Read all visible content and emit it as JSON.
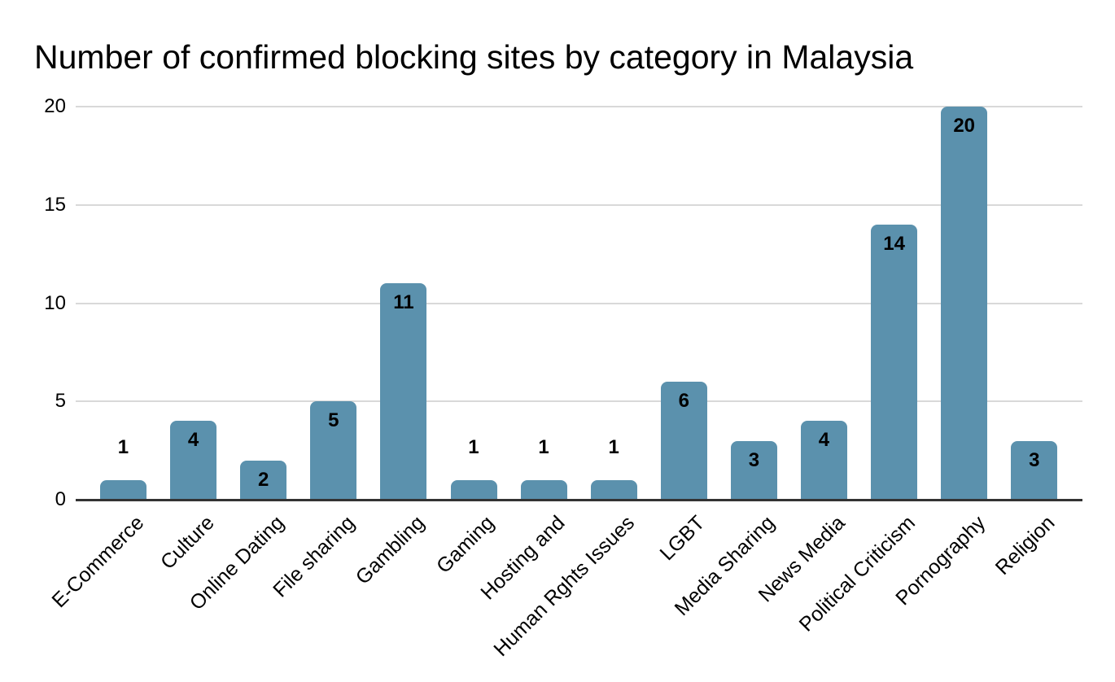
{
  "chart_data": {
    "type": "bar",
    "title": "Number of confirmed blocking sites by category in Malaysia",
    "categories": [
      "E-Commerce",
      "Culture",
      "Online Dating",
      "File sharing",
      "Gambling",
      "Gaming",
      "Hosting and",
      "Human Rghts Issues",
      "LGBT",
      "Media Sharing",
      "News Media",
      "Political Criticism",
      "Pornography",
      "Religion"
    ],
    "values": [
      1,
      4,
      2,
      5,
      11,
      1,
      1,
      1,
      6,
      3,
      4,
      14,
      20,
      3
    ],
    "xlabel": "",
    "ylabel": "",
    "ylim": [
      0,
      20
    ],
    "yticks": [
      0,
      5,
      10,
      15,
      20
    ],
    "grid": true,
    "legend_position": "none",
    "data_labels": true,
    "colors": {
      "bar": "#5b91ad",
      "gridline": "#d9d9d9",
      "axis": "#333333",
      "text": "#000000",
      "background": "#ffffff"
    }
  }
}
